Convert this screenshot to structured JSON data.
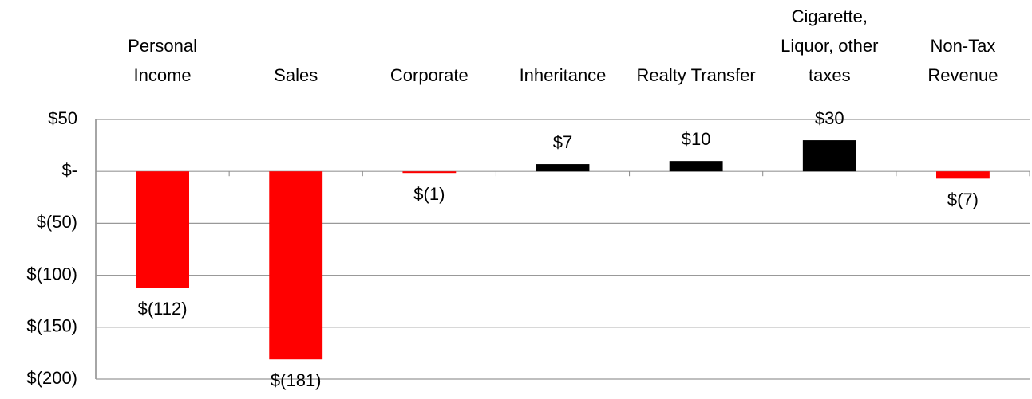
{
  "chart_data": {
    "type": "bar",
    "categories": [
      "Personal Income",
      "Sales",
      "Corporate",
      "Inheritance",
      "Realty Transfer",
      "Cigarette, Liquor, other taxes",
      "Non-Tax Revenue"
    ],
    "values": [
      -112,
      -181,
      -1,
      7,
      10,
      30,
      -7
    ],
    "value_labels": [
      "$(112)",
      "$(181)",
      "$(1)",
      "$7",
      "$10",
      "$30",
      "$(7)"
    ],
    "colors": [
      "#ff0000",
      "#ff0000",
      "#ff0000",
      "#000000",
      "#000000",
      "#000000",
      "#ff0000"
    ],
    "ylim": [
      -200,
      50
    ],
    "yticks": [
      {
        "value": 50,
        "label": "$50"
      },
      {
        "value": 0,
        "label": "$-"
      },
      {
        "value": -50,
        "label": "$(50)"
      },
      {
        "value": -100,
        "label": "$(100)"
      },
      {
        "value": -150,
        "label": "$(150)"
      },
      {
        "value": -200,
        "label": "$(200)"
      }
    ],
    "grid": true
  }
}
